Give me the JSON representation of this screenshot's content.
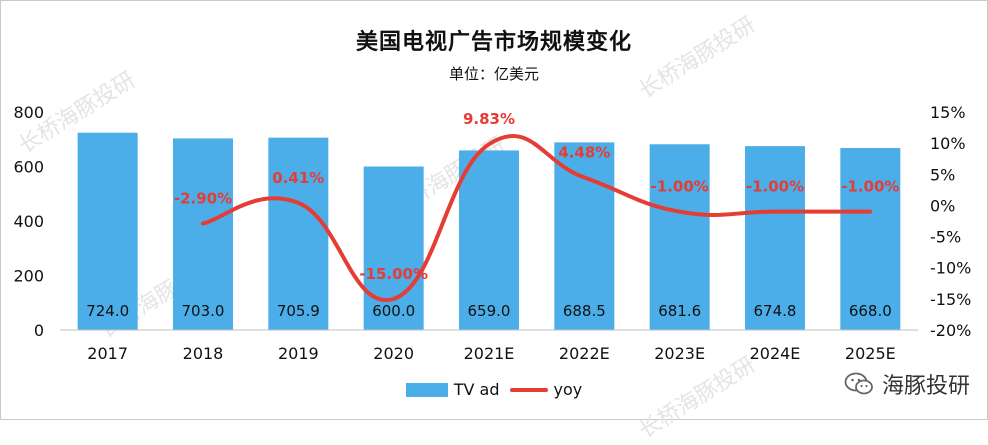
{
  "chart_data": {
    "type": "bar+line",
    "title": "美国电视广告市场规模变化",
    "subtitle": "单位：亿美元",
    "categories": [
      "2017",
      "2018",
      "2019",
      "2020",
      "2021E",
      "2022E",
      "2023E",
      "2024E",
      "2025E"
    ],
    "series": [
      {
        "name": "TV ad",
        "type": "bar",
        "axis": "left",
        "color": "#4baee8",
        "values": [
          724.0,
          703.0,
          705.9,
          600.0,
          659.0,
          688.5,
          681.6,
          674.8,
          668.0
        ],
        "labels": [
          "724.0",
          "703.0",
          "705.9",
          "600.0",
          "659.0",
          "688.5",
          "681.6",
          "674.8",
          "668.0"
        ]
      },
      {
        "name": "yoy",
        "type": "line",
        "axis": "right",
        "color": "#e53c33",
        "values": [
          null,
          -2.9,
          0.41,
          -15.0,
          9.83,
          4.48,
          -1.0,
          -1.0,
          -1.0
        ],
        "labels": [
          "",
          "-2.90%",
          "0.41%",
          "-15.00%",
          "9.83%",
          "4.48%",
          "-1.00%",
          "-1.00%",
          "-1.00%"
        ]
      }
    ],
    "y_left": {
      "min": 0,
      "max": 800,
      "ticks": [
        "0",
        "200",
        "400",
        "600",
        "800"
      ]
    },
    "y_right": {
      "min": -20,
      "max": 15,
      "ticks": [
        "-20%",
        "-15%",
        "-10%",
        "-5%",
        "0%",
        "5%",
        "10%",
        "15%"
      ]
    },
    "grid": false,
    "legend_position": "bottom"
  },
  "legend": {
    "bar_label": "TV ad",
    "line_label": "yoy"
  },
  "brand": {
    "name": "海豚投研",
    "icon": "wechat-icon"
  },
  "watermark": {
    "text": "长桥海豚投研"
  }
}
